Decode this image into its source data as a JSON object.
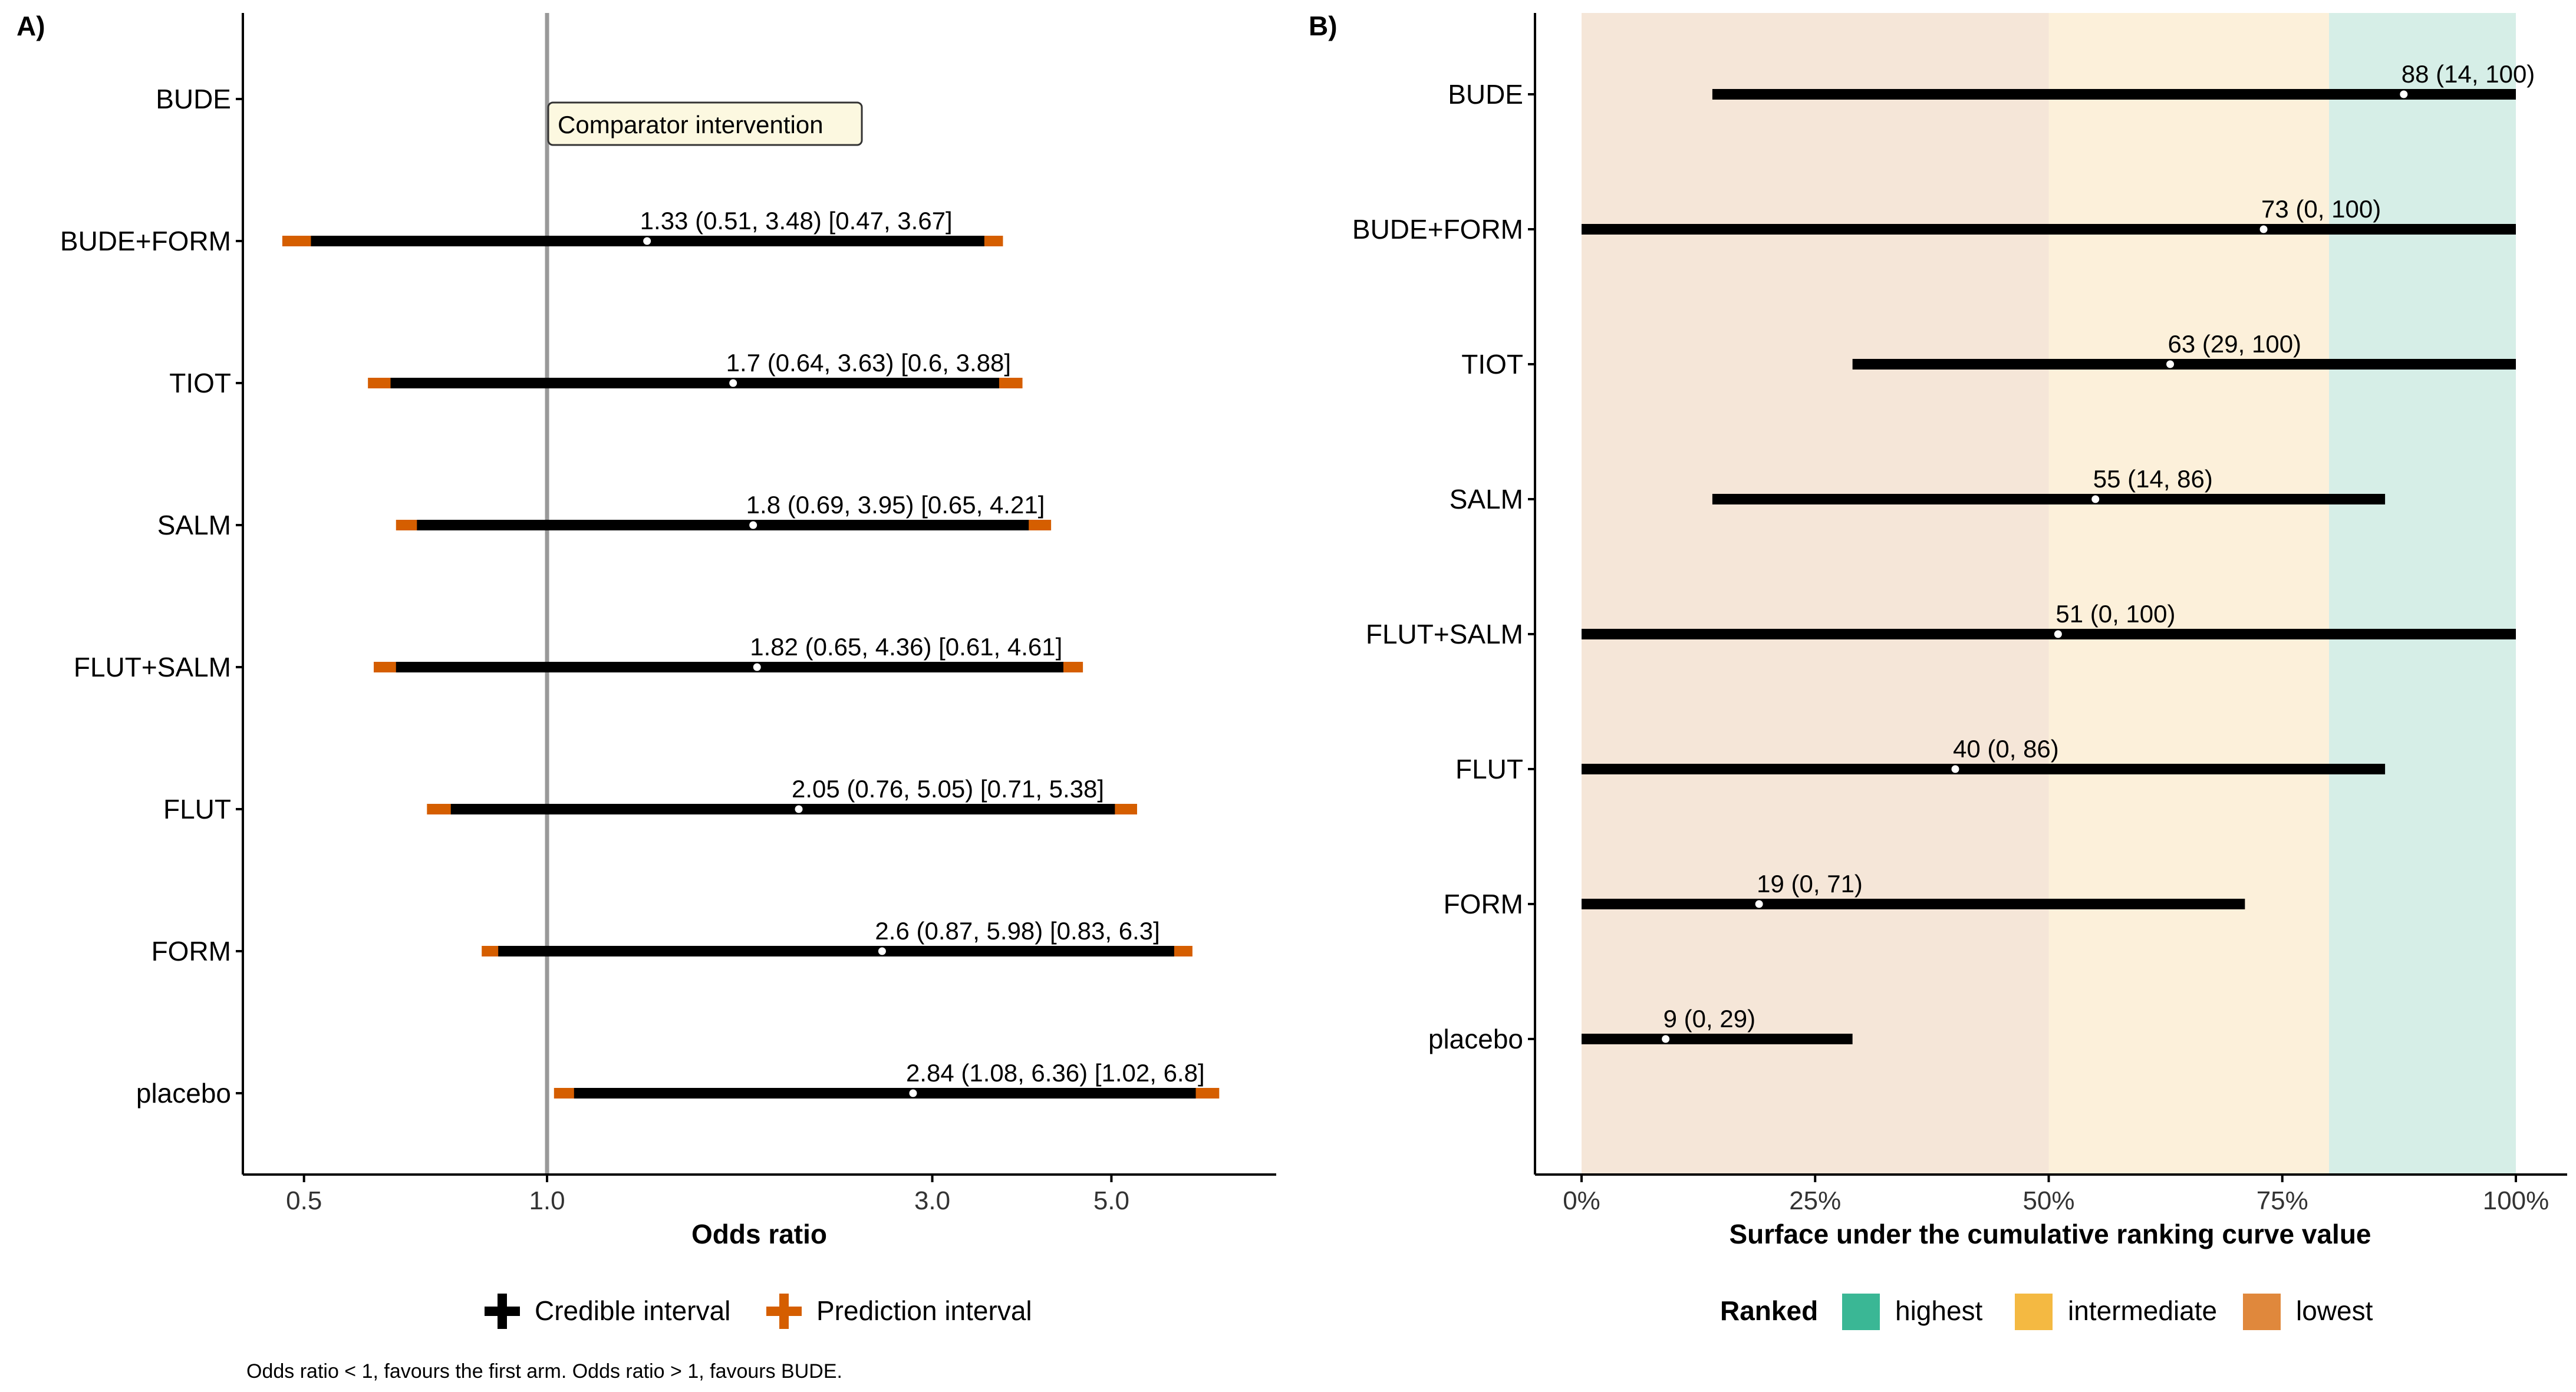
{
  "chart_data": [
    {
      "panel_label": "A)",
      "type": "forest",
      "xlabel": "Odds ratio",
      "x_scale": "log",
      "xlim": [
        0.42,
        8.0
      ],
      "x_ticks": [
        0.5,
        1.0,
        3.0,
        5.0
      ],
      "x_tick_labels": [
        "0.5",
        "1.0",
        "3.0",
        "5.0"
      ],
      "reference_line": 1.0,
      "reference_label": "Comparator intervention",
      "rows": [
        {
          "name": "BUDE",
          "reference": true
        },
        {
          "name": "BUDE+FORM",
          "est": 1.33,
          "cri": [
            0.51,
            3.48
          ],
          "pri": [
            0.47,
            3.67
          ],
          "label": "1.33 (0.51, 3.48) [0.47, 3.67]"
        },
        {
          "name": "TIOT",
          "est": 1.7,
          "cri": [
            0.64,
            3.63
          ],
          "pri": [
            0.6,
            3.88
          ],
          "label": "1.7 (0.64, 3.63) [0.6, 3.88]"
        },
        {
          "name": "SALM",
          "est": 1.8,
          "cri": [
            0.69,
            3.95
          ],
          "pri": [
            0.65,
            4.21
          ],
          "label": "1.8 (0.69, 3.95) [0.65, 4.21]"
        },
        {
          "name": "FLUT+SALM",
          "est": 1.82,
          "cri": [
            0.65,
            4.36
          ],
          "pri": [
            0.61,
            4.61
          ],
          "label": "1.82 (0.65, 4.36) [0.61, 4.61]"
        },
        {
          "name": "FLUT",
          "est": 2.05,
          "cri": [
            0.76,
            5.05
          ],
          "pri": [
            0.71,
            5.38
          ],
          "label": "2.05 (0.76, 5.05) [0.71, 5.38]"
        },
        {
          "name": "FORM",
          "est": 2.6,
          "cri": [
            0.87,
            5.98
          ],
          "pri": [
            0.83,
            6.3
          ],
          "label": "2.6 (0.87, 5.98) [0.83, 6.3]"
        },
        {
          "name": "placebo",
          "est": 2.84,
          "cri": [
            1.08,
            6.36
          ],
          "pri": [
            1.02,
            6.8
          ],
          "label": "2.84 (1.08, 6.36) [1.02, 6.8]"
        }
      ],
      "legend": [
        {
          "label": "Credible interval",
          "color": "#000000"
        },
        {
          "label": "Prediction interval",
          "color": "#D55E00"
        }
      ],
      "footnote": "Odds ratio < 1, favours the first arm. Odds ratio > 1, favours BUDE."
    },
    {
      "panel_label": "B)",
      "type": "interval",
      "xlabel": "Surface under the cumulative ranking curve value",
      "xlim": [
        0,
        100
      ],
      "x_ticks": [
        0,
        25,
        50,
        75,
        100
      ],
      "x_tick_labels": [
        "0%",
        "25%",
        "50%",
        "75%",
        "100%"
      ],
      "bands": [
        {
          "from": 0,
          "to": 50,
          "color": "#F5E6D8"
        },
        {
          "from": 50,
          "to": 80,
          "color": "#FCF0DA"
        },
        {
          "from": 80,
          "to": 100,
          "color": "#D6EEE7"
        }
      ],
      "rows": [
        {
          "name": "BUDE",
          "est": 88,
          "lo": 14,
          "hi": 100,
          "label": "88 (14, 100)"
        },
        {
          "name": "BUDE+FORM",
          "est": 73,
          "lo": 0,
          "hi": 100,
          "label": "73 (0, 100)"
        },
        {
          "name": "TIOT",
          "est": 63,
          "lo": 29,
          "hi": 100,
          "label": "63 (29, 100)"
        },
        {
          "name": "SALM",
          "est": 55,
          "lo": 14,
          "hi": 86,
          "label": "55 (14, 86)"
        },
        {
          "name": "FLUT+SALM",
          "est": 51,
          "lo": 0,
          "hi": 100,
          "label": "51 (0, 100)"
        },
        {
          "name": "FLUT",
          "est": 40,
          "lo": 0,
          "hi": 86,
          "label": "40 (0, 86)"
        },
        {
          "name": "FORM",
          "est": 19,
          "lo": 0,
          "hi": 71,
          "label": "19 (0, 71)"
        },
        {
          "name": "placebo",
          "est": 9,
          "lo": 0,
          "hi": 29,
          "label": "9 (0, 29)"
        }
      ],
      "legend_title": "Ranked",
      "legend": [
        {
          "label": "highest",
          "color": "#3AB795"
        },
        {
          "label": "intermediate",
          "color": "#F4B942"
        },
        {
          "label": "lowest",
          "color": "#E0883C"
        }
      ]
    }
  ]
}
